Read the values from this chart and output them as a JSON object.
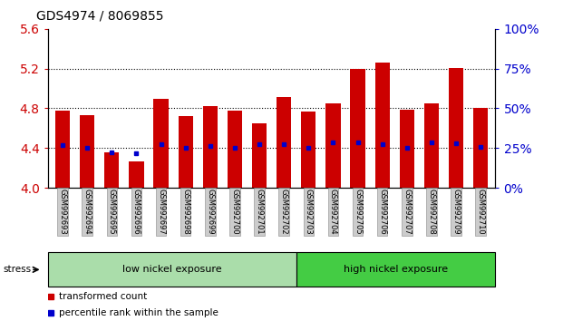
{
  "title": "GDS4974 / 8069855",
  "samples": [
    "GSM992693",
    "GSM992694",
    "GSM992695",
    "GSM992696",
    "GSM992697",
    "GSM992698",
    "GSM992699",
    "GSM992700",
    "GSM992701",
    "GSM992702",
    "GSM992703",
    "GSM992704",
    "GSM992705",
    "GSM992706",
    "GSM992707",
    "GSM992708",
    "GSM992709",
    "GSM992710"
  ],
  "bar_values": [
    4.78,
    4.73,
    4.36,
    4.27,
    4.9,
    4.72,
    4.82,
    4.78,
    4.65,
    4.91,
    4.77,
    4.85,
    5.2,
    5.26,
    4.79,
    4.85,
    5.21,
    4.8
  ],
  "blue_dot_values": [
    4.43,
    4.4,
    4.36,
    4.35,
    4.44,
    4.4,
    4.42,
    4.4,
    4.44,
    4.44,
    4.4,
    4.46,
    4.46,
    4.44,
    4.4,
    4.46,
    4.45,
    4.41
  ],
  "bar_color": "#cc0000",
  "blue_color": "#0000cc",
  "ylim_left": [
    4.0,
    5.6
  ],
  "ylim_right": [
    0,
    100
  ],
  "yticks_left": [
    4.0,
    4.4,
    4.8,
    5.2,
    5.6
  ],
  "yticks_right": [
    0,
    25,
    50,
    75,
    100
  ],
  "ytick_labels_right": [
    "0%",
    "25%",
    "50%",
    "75%",
    "100%"
  ],
  "grid_lines": [
    4.4,
    4.8,
    5.2
  ],
  "group1_label": "low nickel exposure",
  "group2_label": "high nickel exposure",
  "group1_n": 10,
  "group2_n": 8,
  "group1_color": "#aaddaa",
  "group2_color": "#44cc44",
  "stress_label": "stress",
  "legend1": "transformed count",
  "legend2": "percentile rank within the sample",
  "bar_width": 0.6,
  "background_color": "#ffffff",
  "tick_label_color_left": "#cc0000",
  "tick_label_color_right": "#0000cc",
  "xticklabel_bg": "#cccccc",
  "title_fontsize": 10,
  "group_fontsize": 8,
  "legend_fontsize": 7.5,
  "xtick_fontsize": 6
}
